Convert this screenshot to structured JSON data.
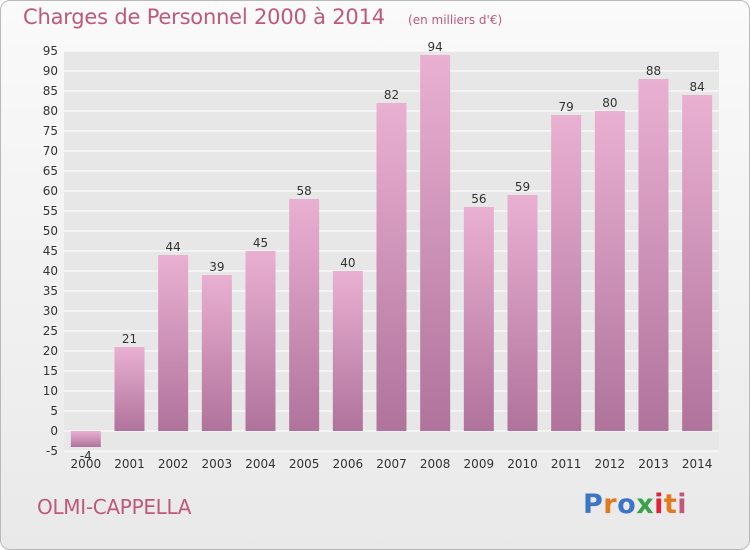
{
  "title": "Charges de Personnel 2000 à 2014",
  "subtitle": "(en milliers d'€)",
  "commune": "OLMI-CAPPELLA",
  "logo": {
    "text": "Proxiti",
    "colors": [
      "#3c74c6",
      "#e07a1f",
      "#3c74c6",
      "#3aa34a",
      "#e0223a",
      "#e07a1f",
      "#c0587a"
    ]
  },
  "colors": {
    "accent": "#c0587a",
    "bar_top": "#eab0d2",
    "bar_bottom": "#b0739c",
    "grid": "#ffffff",
    "plot_bg": "#e7e7e7"
  },
  "chart_data": {
    "type": "bar",
    "title": "Charges de Personnel 2000 à 2014",
    "subtitle": "(en milliers d'€)",
    "categories": [
      "2000",
      "2001",
      "2002",
      "2003",
      "2004",
      "2005",
      "2006",
      "2007",
      "2008",
      "2009",
      "2010",
      "2011",
      "2012",
      "2013",
      "2014"
    ],
    "values": [
      -4,
      21,
      44,
      39,
      45,
      58,
      40,
      82,
      94,
      56,
      59,
      79,
      80,
      88,
      84
    ],
    "ylim": [
      -5,
      95
    ],
    "yticks": [
      -5,
      0,
      5,
      10,
      15,
      20,
      25,
      30,
      35,
      40,
      45,
      50,
      55,
      60,
      65,
      70,
      75,
      80,
      85,
      90,
      95
    ],
    "grid": true
  }
}
